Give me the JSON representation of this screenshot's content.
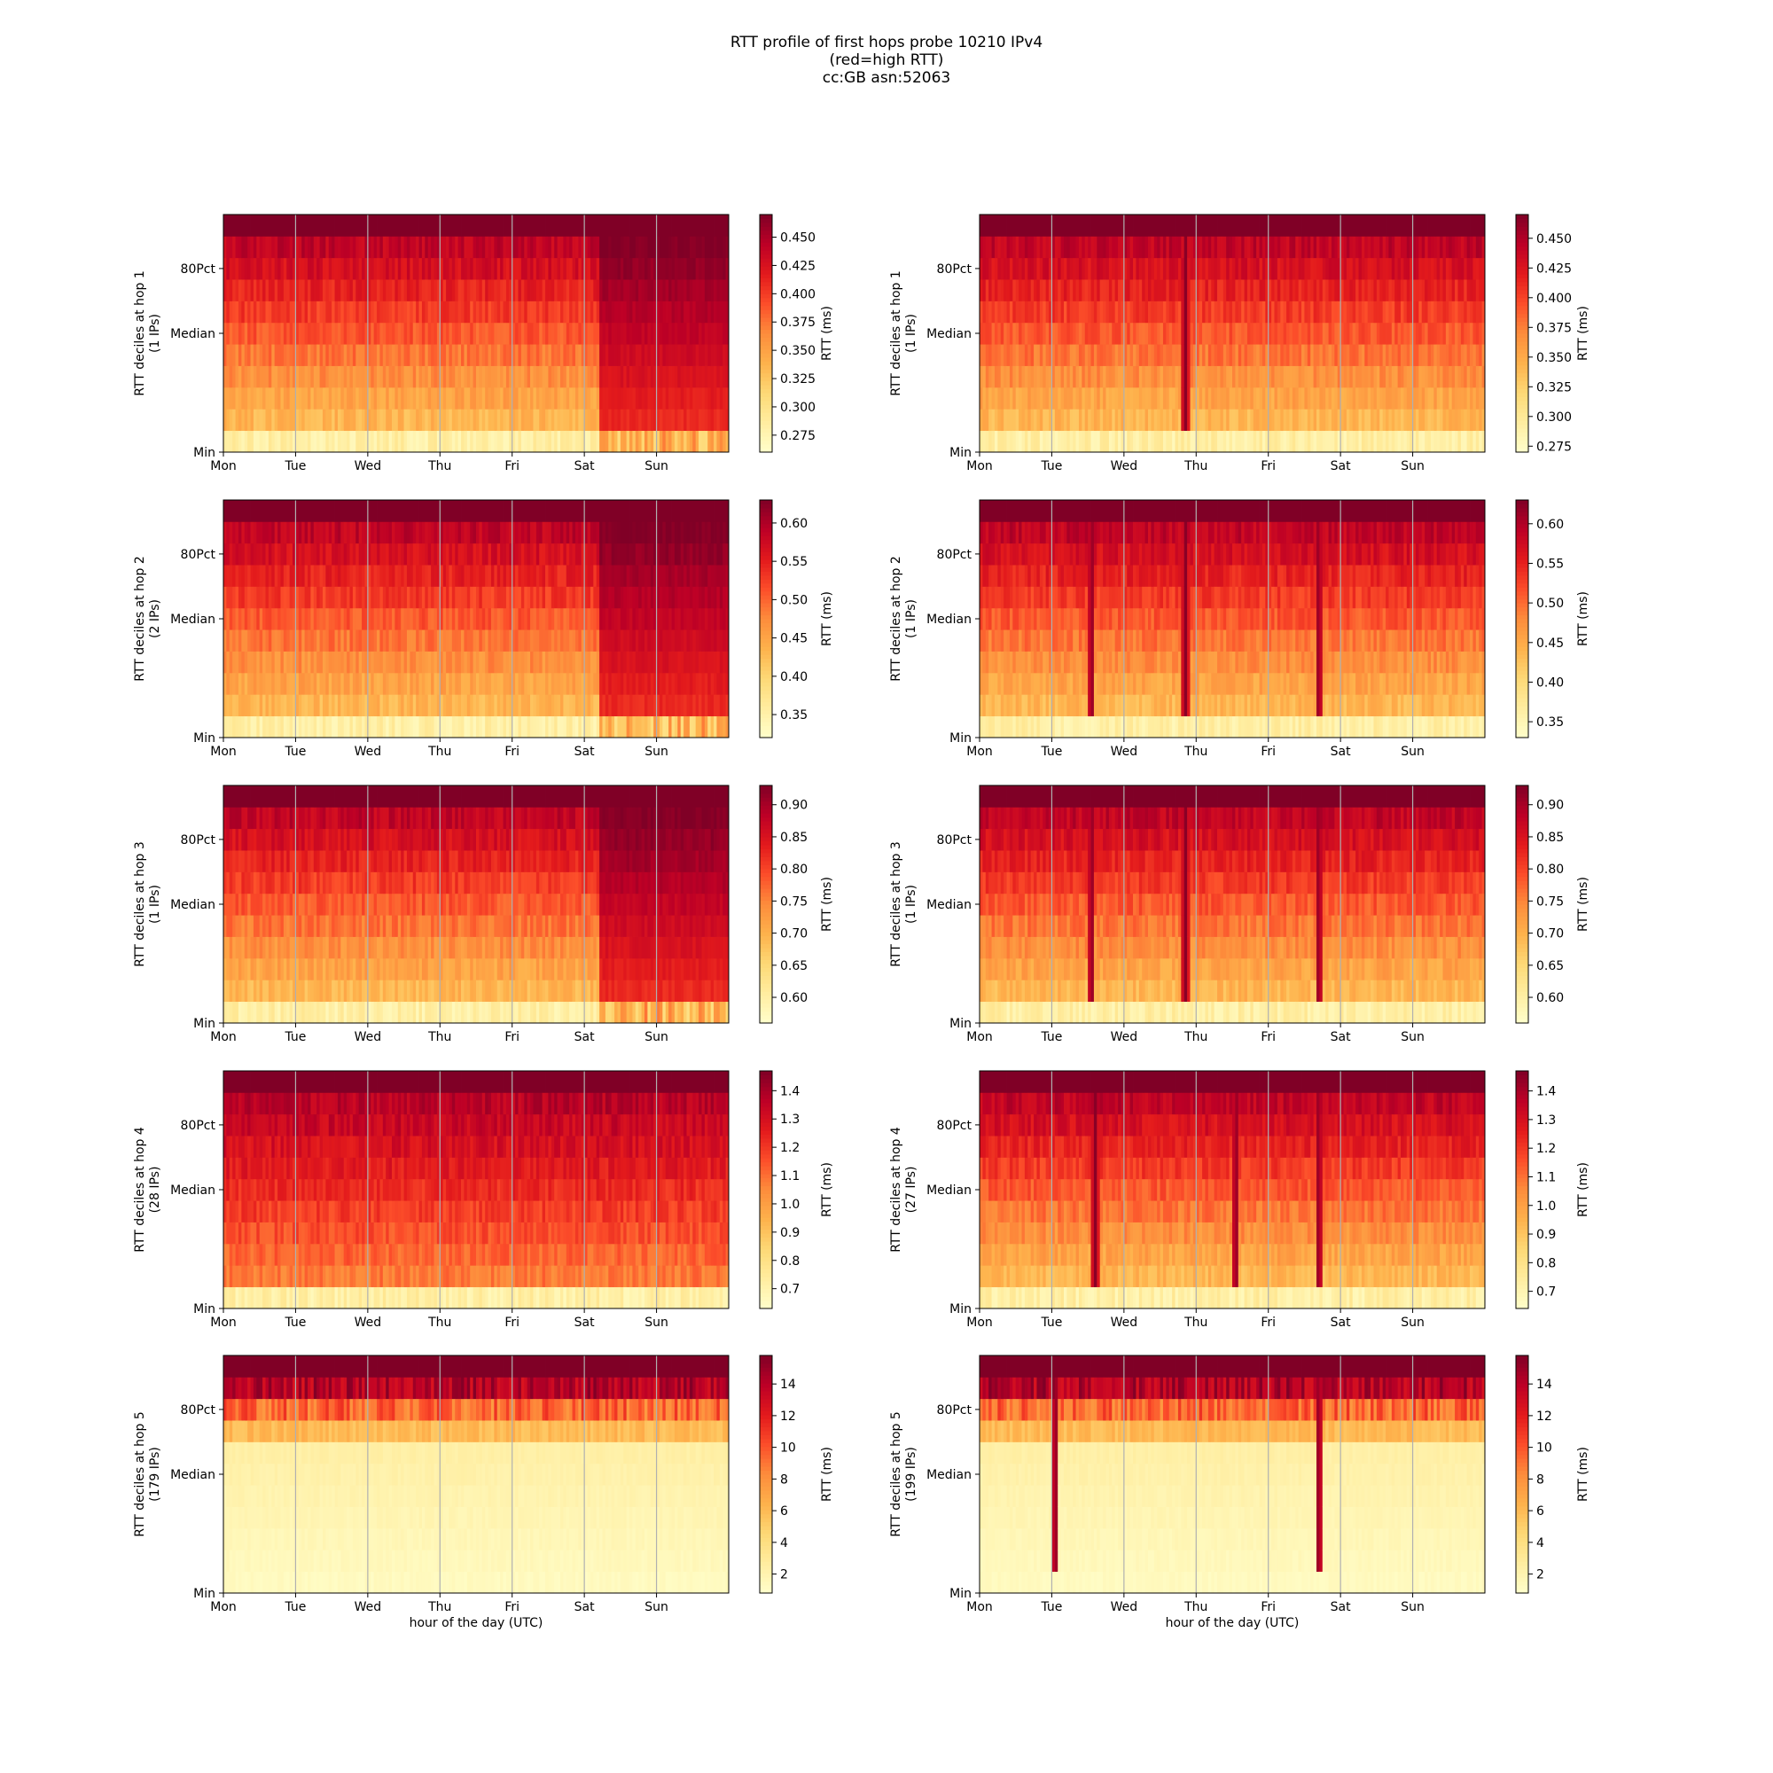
{
  "figure": {
    "title_lines": [
      "RTT profile of first hops probe 10210 IPv4",
      "(red=high RTT)",
      "cc:GB asn:52063"
    ]
  },
  "colormap": {
    "name": "YlOrRd",
    "stops": [
      "#ffffcc",
      "#ffeda0",
      "#fed976",
      "#feb24c",
      "#fd8d3c",
      "#fc4e2a",
      "#e31a1c",
      "#bd0026",
      "#800026"
    ]
  },
  "chart_data": [
    {
      "type": "heatmap",
      "panel": "hop-1-left",
      "ylabel": [
        "RTT deciles at hop 1",
        "(1 IPs)"
      ],
      "xlabel": "",
      "x_ticks": [
        "Mon",
        "Tue",
        "Wed",
        "Thu",
        "Fri",
        "Sat",
        "Sun"
      ],
      "y_ticks": [
        "Min",
        "Median",
        "80Pct"
      ],
      "grid": "vertical lines at each day",
      "colorbar": {
        "label": "RTT (ms)",
        "range": [
          0.26,
          0.47
        ],
        "ticks": [
          "0.275",
          "0.300",
          "0.325",
          "0.350",
          "0.375",
          "0.400",
          "0.425",
          "0.450"
        ]
      },
      "profile": "hi_mon_sat",
      "regime_change_day": 5.2,
      "deciles": 11
    },
    {
      "type": "heatmap",
      "panel": "hop-1-right",
      "ylabel": [
        "RTT deciles at hop 1",
        "(1 IPs)"
      ],
      "xlabel": "",
      "x_ticks": [
        "Mon",
        "Tue",
        "Wed",
        "Thu",
        "Fri",
        "Sat",
        "Sun"
      ],
      "y_ticks": [
        "Min",
        "Median",
        "80Pct"
      ],
      "grid": "vertical lines at each day",
      "colorbar": {
        "label": "RTT (ms)",
        "range": [
          0.27,
          0.47
        ],
        "ticks": [
          "0.275",
          "0.300",
          "0.325",
          "0.350",
          "0.375",
          "0.400",
          "0.425",
          "0.450"
        ]
      },
      "profile": "steady",
      "spike_days": [
        2.85
      ],
      "deciles": 11
    },
    {
      "type": "heatmap",
      "panel": "hop-2-left",
      "ylabel": [
        "RTT deciles at hop 2",
        "(2 IPs)"
      ],
      "xlabel": "",
      "x_ticks": [
        "Mon",
        "Tue",
        "Wed",
        "Thu",
        "Fri",
        "Sat",
        "Sun"
      ],
      "y_ticks": [
        "Min",
        "Median",
        "80Pct"
      ],
      "grid": "vertical lines at each day",
      "colorbar": {
        "label": "RTT (ms)",
        "range": [
          0.32,
          0.63
        ],
        "ticks": [
          "0.35",
          "0.40",
          "0.45",
          "0.50",
          "0.55",
          "0.60"
        ]
      },
      "profile": "hi_mon_sat",
      "regime_change_day": 5.2,
      "deciles": 11
    },
    {
      "type": "heatmap",
      "panel": "hop-2-right",
      "ylabel": [
        "RTT deciles at hop 2",
        "(1 IPs)"
      ],
      "xlabel": "",
      "x_ticks": [
        "Mon",
        "Tue",
        "Wed",
        "Thu",
        "Fri",
        "Sat",
        "Sun"
      ],
      "y_ticks": [
        "Min",
        "Median",
        "80Pct"
      ],
      "grid": "vertical lines at each day",
      "colorbar": {
        "label": "RTT (ms)",
        "range": [
          0.33,
          0.63
        ],
        "ticks": [
          "0.35",
          "0.40",
          "0.45",
          "0.50",
          "0.55",
          "0.60"
        ]
      },
      "profile": "steady",
      "spike_days": [
        1.55,
        2.85,
        4.7
      ],
      "deciles": 11
    },
    {
      "type": "heatmap",
      "panel": "hop-3-left",
      "ylabel": [
        "RTT deciles at hop 3",
        "(1 IPs)"
      ],
      "xlabel": "",
      "x_ticks": [
        "Mon",
        "Tue",
        "Wed",
        "Thu",
        "Fri",
        "Sat",
        "Sun"
      ],
      "y_ticks": [
        "Min",
        "Median",
        "80Pct"
      ],
      "grid": "vertical lines at each day",
      "colorbar": {
        "label": "RTT (ms)",
        "range": [
          0.56,
          0.93
        ],
        "ticks": [
          "0.60",
          "0.65",
          "0.70",
          "0.75",
          "0.80",
          "0.85",
          "0.90"
        ]
      },
      "profile": "hi_mon_sat",
      "regime_change_day": 5.2,
      "deciles": 11
    },
    {
      "type": "heatmap",
      "panel": "hop-3-right",
      "ylabel": [
        "RTT deciles at hop 3",
        "(1 IPs)"
      ],
      "xlabel": "",
      "x_ticks": [
        "Mon",
        "Tue",
        "Wed",
        "Thu",
        "Fri",
        "Sat",
        "Sun"
      ],
      "y_ticks": [
        "Min",
        "Median",
        "80Pct"
      ],
      "grid": "vertical lines at each day",
      "colorbar": {
        "label": "RTT (ms)",
        "range": [
          0.56,
          0.93
        ],
        "ticks": [
          "0.60",
          "0.65",
          "0.70",
          "0.75",
          "0.80",
          "0.85",
          "0.90"
        ]
      },
      "profile": "steady",
      "spike_days": [
        1.55,
        2.85,
        4.7
      ],
      "deciles": 11
    },
    {
      "type": "heatmap",
      "panel": "hop-4-left",
      "ylabel": [
        "RTT deciles at hop 4",
        "(28 IPs)"
      ],
      "xlabel": "",
      "x_ticks": [
        "Mon",
        "Tue",
        "Wed",
        "Thu",
        "Fri",
        "Sat",
        "Sun"
      ],
      "y_ticks": [
        "Min",
        "Median",
        "80Pct"
      ],
      "grid": "vertical lines at each day",
      "colorbar": {
        "label": "RTT (ms)",
        "range": [
          0.63,
          1.47
        ],
        "ticks": [
          "0.7",
          "0.8",
          "0.9",
          "1.0",
          "1.1",
          "1.2",
          "1.3",
          "1.4"
        ]
      },
      "profile": "elevated",
      "deciles": 11
    },
    {
      "type": "heatmap",
      "panel": "hop-4-right",
      "ylabel": [
        "RTT deciles at hop 4",
        "(27 IPs)"
      ],
      "xlabel": "",
      "x_ticks": [
        "Mon",
        "Tue",
        "Wed",
        "Thu",
        "Fri",
        "Sat",
        "Sun"
      ],
      "y_ticks": [
        "Min",
        "Median",
        "80Pct"
      ],
      "grid": "vertical lines at each day",
      "colorbar": {
        "label": "RTT (ms)",
        "range": [
          0.64,
          1.47
        ],
        "ticks": [
          "0.7",
          "0.8",
          "0.9",
          "1.0",
          "1.1",
          "1.2",
          "1.3",
          "1.4"
        ]
      },
      "profile": "steady",
      "spike_days": [
        1.6,
        3.55,
        4.7
      ],
      "deciles": 11
    },
    {
      "type": "heatmap",
      "panel": "hop-5-left",
      "ylabel": [
        "RTT deciles at hop 5",
        "(179 IPs)"
      ],
      "xlabel": "hour of the day (UTC)",
      "x_ticks": [
        "Mon",
        "Tue",
        "Wed",
        "Thu",
        "Fri",
        "Sat",
        "Sun"
      ],
      "y_ticks": [
        "Min",
        "Median",
        "80Pct"
      ],
      "grid": "vertical lines at each day",
      "colorbar": {
        "label": "RTT (ms)",
        "range": [
          0.8,
          15.8
        ],
        "ticks": [
          "2",
          "4",
          "6",
          "8",
          "10",
          "12",
          "14"
        ]
      },
      "profile": "skewed",
      "deciles": 11
    },
    {
      "type": "heatmap",
      "panel": "hop-5-right",
      "ylabel": [
        "RTT deciles at hop 5",
        "(199 IPs)"
      ],
      "xlabel": "hour of the day (UTC)",
      "x_ticks": [
        "Mon",
        "Tue",
        "Wed",
        "Thu",
        "Fri",
        "Sat",
        "Sun"
      ],
      "y_ticks": [
        "Min",
        "Median",
        "80Pct"
      ],
      "grid": "vertical lines at each day",
      "colorbar": {
        "label": "RTT (ms)",
        "range": [
          0.8,
          15.8
        ],
        "ticks": [
          "2",
          "4",
          "6",
          "8",
          "10",
          "12",
          "14"
        ]
      },
      "profile": "skewed",
      "spike_days": [
        1.05,
        4.7
      ],
      "deciles": 11
    }
  ]
}
